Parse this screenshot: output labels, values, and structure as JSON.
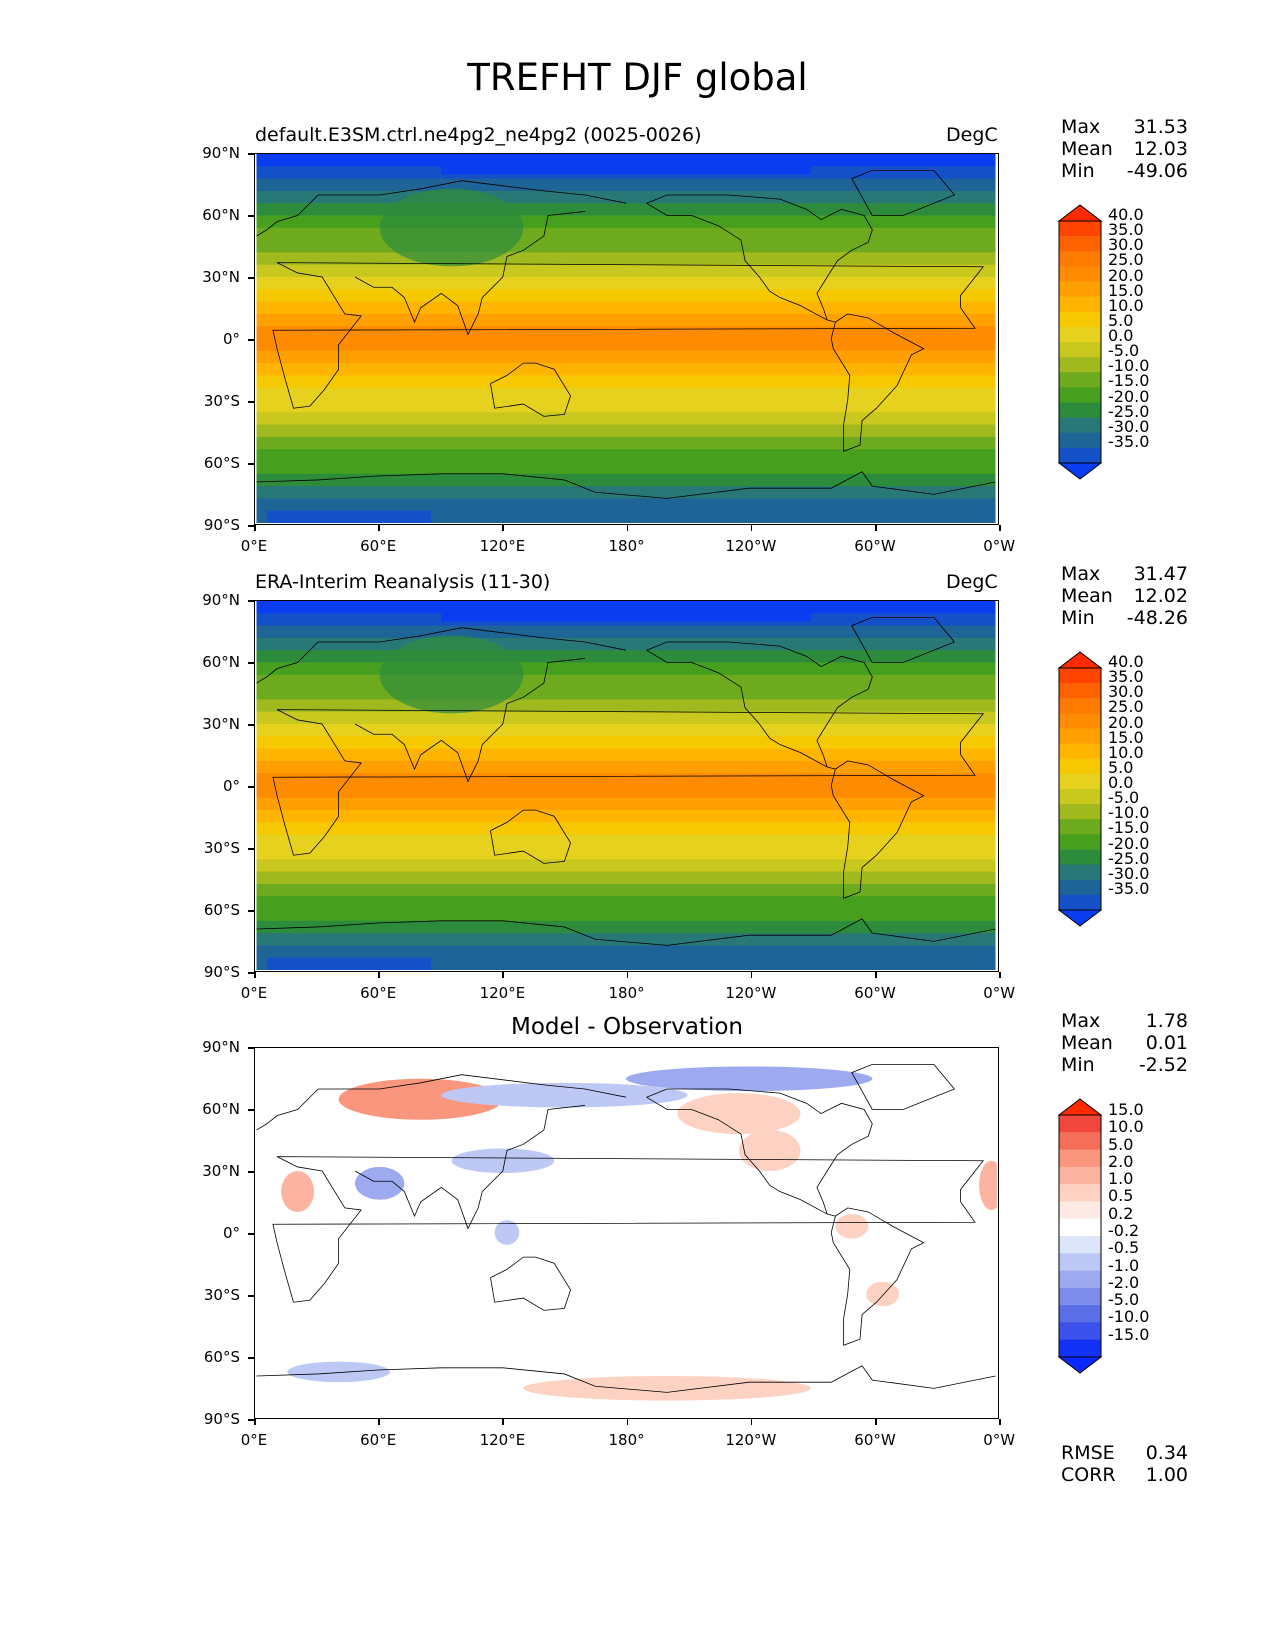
{
  "title": "TREFHT DJF global",
  "panels": [
    {
      "title_left": "default.E3SM.ctrl.ne4pg2_ne4pg2 (0025-0026)",
      "title_right": "DegC",
      "title_center": "",
      "stats": {
        "max_label": "Max",
        "max": "31.53",
        "mean_label": "Mean",
        "mean": "12.03",
        "min_label": "Min",
        "min": "-49.06"
      },
      "colorbar": {
        "labels": [
          "40.0",
          "35.0",
          "30.0",
          "25.0",
          "20.0",
          "15.0",
          "10.0",
          "5.0",
          "0.0",
          "-5.0",
          "-10.0",
          "-15.0",
          "-20.0",
          "-25.0",
          "-30.0",
          "-35.0"
        ],
        "colors": [
          "#ff2a00",
          "#ff4400",
          "#ff6200",
          "#ff7a00",
          "#ff8c00",
          "#ffa000",
          "#ffb400",
          "#f5c800",
          "#e6d21e",
          "#c8c81e",
          "#a0b91e",
          "#6eaa1e",
          "#46a01e",
          "#2d8c3c",
          "#287878",
          "#1e6496",
          "#1450c8",
          "#0a3cf0"
        ]
      },
      "metrics": null
    },
    {
      "title_left": "ERA-Interim Reanalysis (11-30)",
      "title_right": "DegC",
      "title_center": "",
      "stats": {
        "max_label": "Max",
        "max": "31.47",
        "mean_label": "Mean",
        "mean": "12.02",
        "min_label": "Min",
        "min": "-48.26"
      },
      "colorbar": {
        "labels": [
          "40.0",
          "35.0",
          "30.0",
          "25.0",
          "20.0",
          "15.0",
          "10.0",
          "5.0",
          "0.0",
          "-5.0",
          "-10.0",
          "-15.0",
          "-20.0",
          "-25.0",
          "-30.0",
          "-35.0"
        ],
        "colors": [
          "#ff2a00",
          "#ff4400",
          "#ff6200",
          "#ff7a00",
          "#ff8c00",
          "#ffa000",
          "#ffb400",
          "#f5c800",
          "#e6d21e",
          "#c8c81e",
          "#a0b91e",
          "#6eaa1e",
          "#46a01e",
          "#2d8c3c",
          "#287878",
          "#1e6496",
          "#1450c8",
          "#0a3cf0"
        ]
      },
      "metrics": null
    },
    {
      "title_left": "",
      "title_right": "",
      "title_center": "Model - Observation",
      "stats": {
        "max_label": "Max",
        "max": "1.78",
        "mean_label": "Mean",
        "mean": "0.01",
        "min_label": "Min",
        "min": "-2.52"
      },
      "colorbar": {
        "labels": [
          "15.0",
          "10.0",
          "5.0",
          "2.0",
          "1.0",
          "0.5",
          "0.2",
          "-0.2",
          "-0.5",
          "-1.0",
          "-2.0",
          "-5.0",
          "-10.0",
          "-15.0"
        ],
        "colors": [
          "#ff2a00",
          "#f0463c",
          "#f56e5a",
          "#fa967d",
          "#fcb4a0",
          "#fdd2c3",
          "#fdeae4",
          "#ffffff",
          "#dee6fa",
          "#bec8f5",
          "#9eaaf0",
          "#7e8ceb",
          "#5a6ee6",
          "#3c50eb",
          "#1432f5",
          "#0a28ff"
        ]
      },
      "metrics": {
        "rmse_label": "RMSE",
        "rmse": "0.34",
        "corr_label": "CORR",
        "corr": "1.00"
      }
    }
  ],
  "axes": {
    "y_ticks": [
      "90°N",
      "60°N",
      "30°N",
      "0°",
      "30°S",
      "60°S",
      "90°S"
    ],
    "x_ticks": [
      "0°E",
      "60°E",
      "120°E",
      "180°",
      "120°W",
      "60°W",
      "0°W"
    ]
  }
}
